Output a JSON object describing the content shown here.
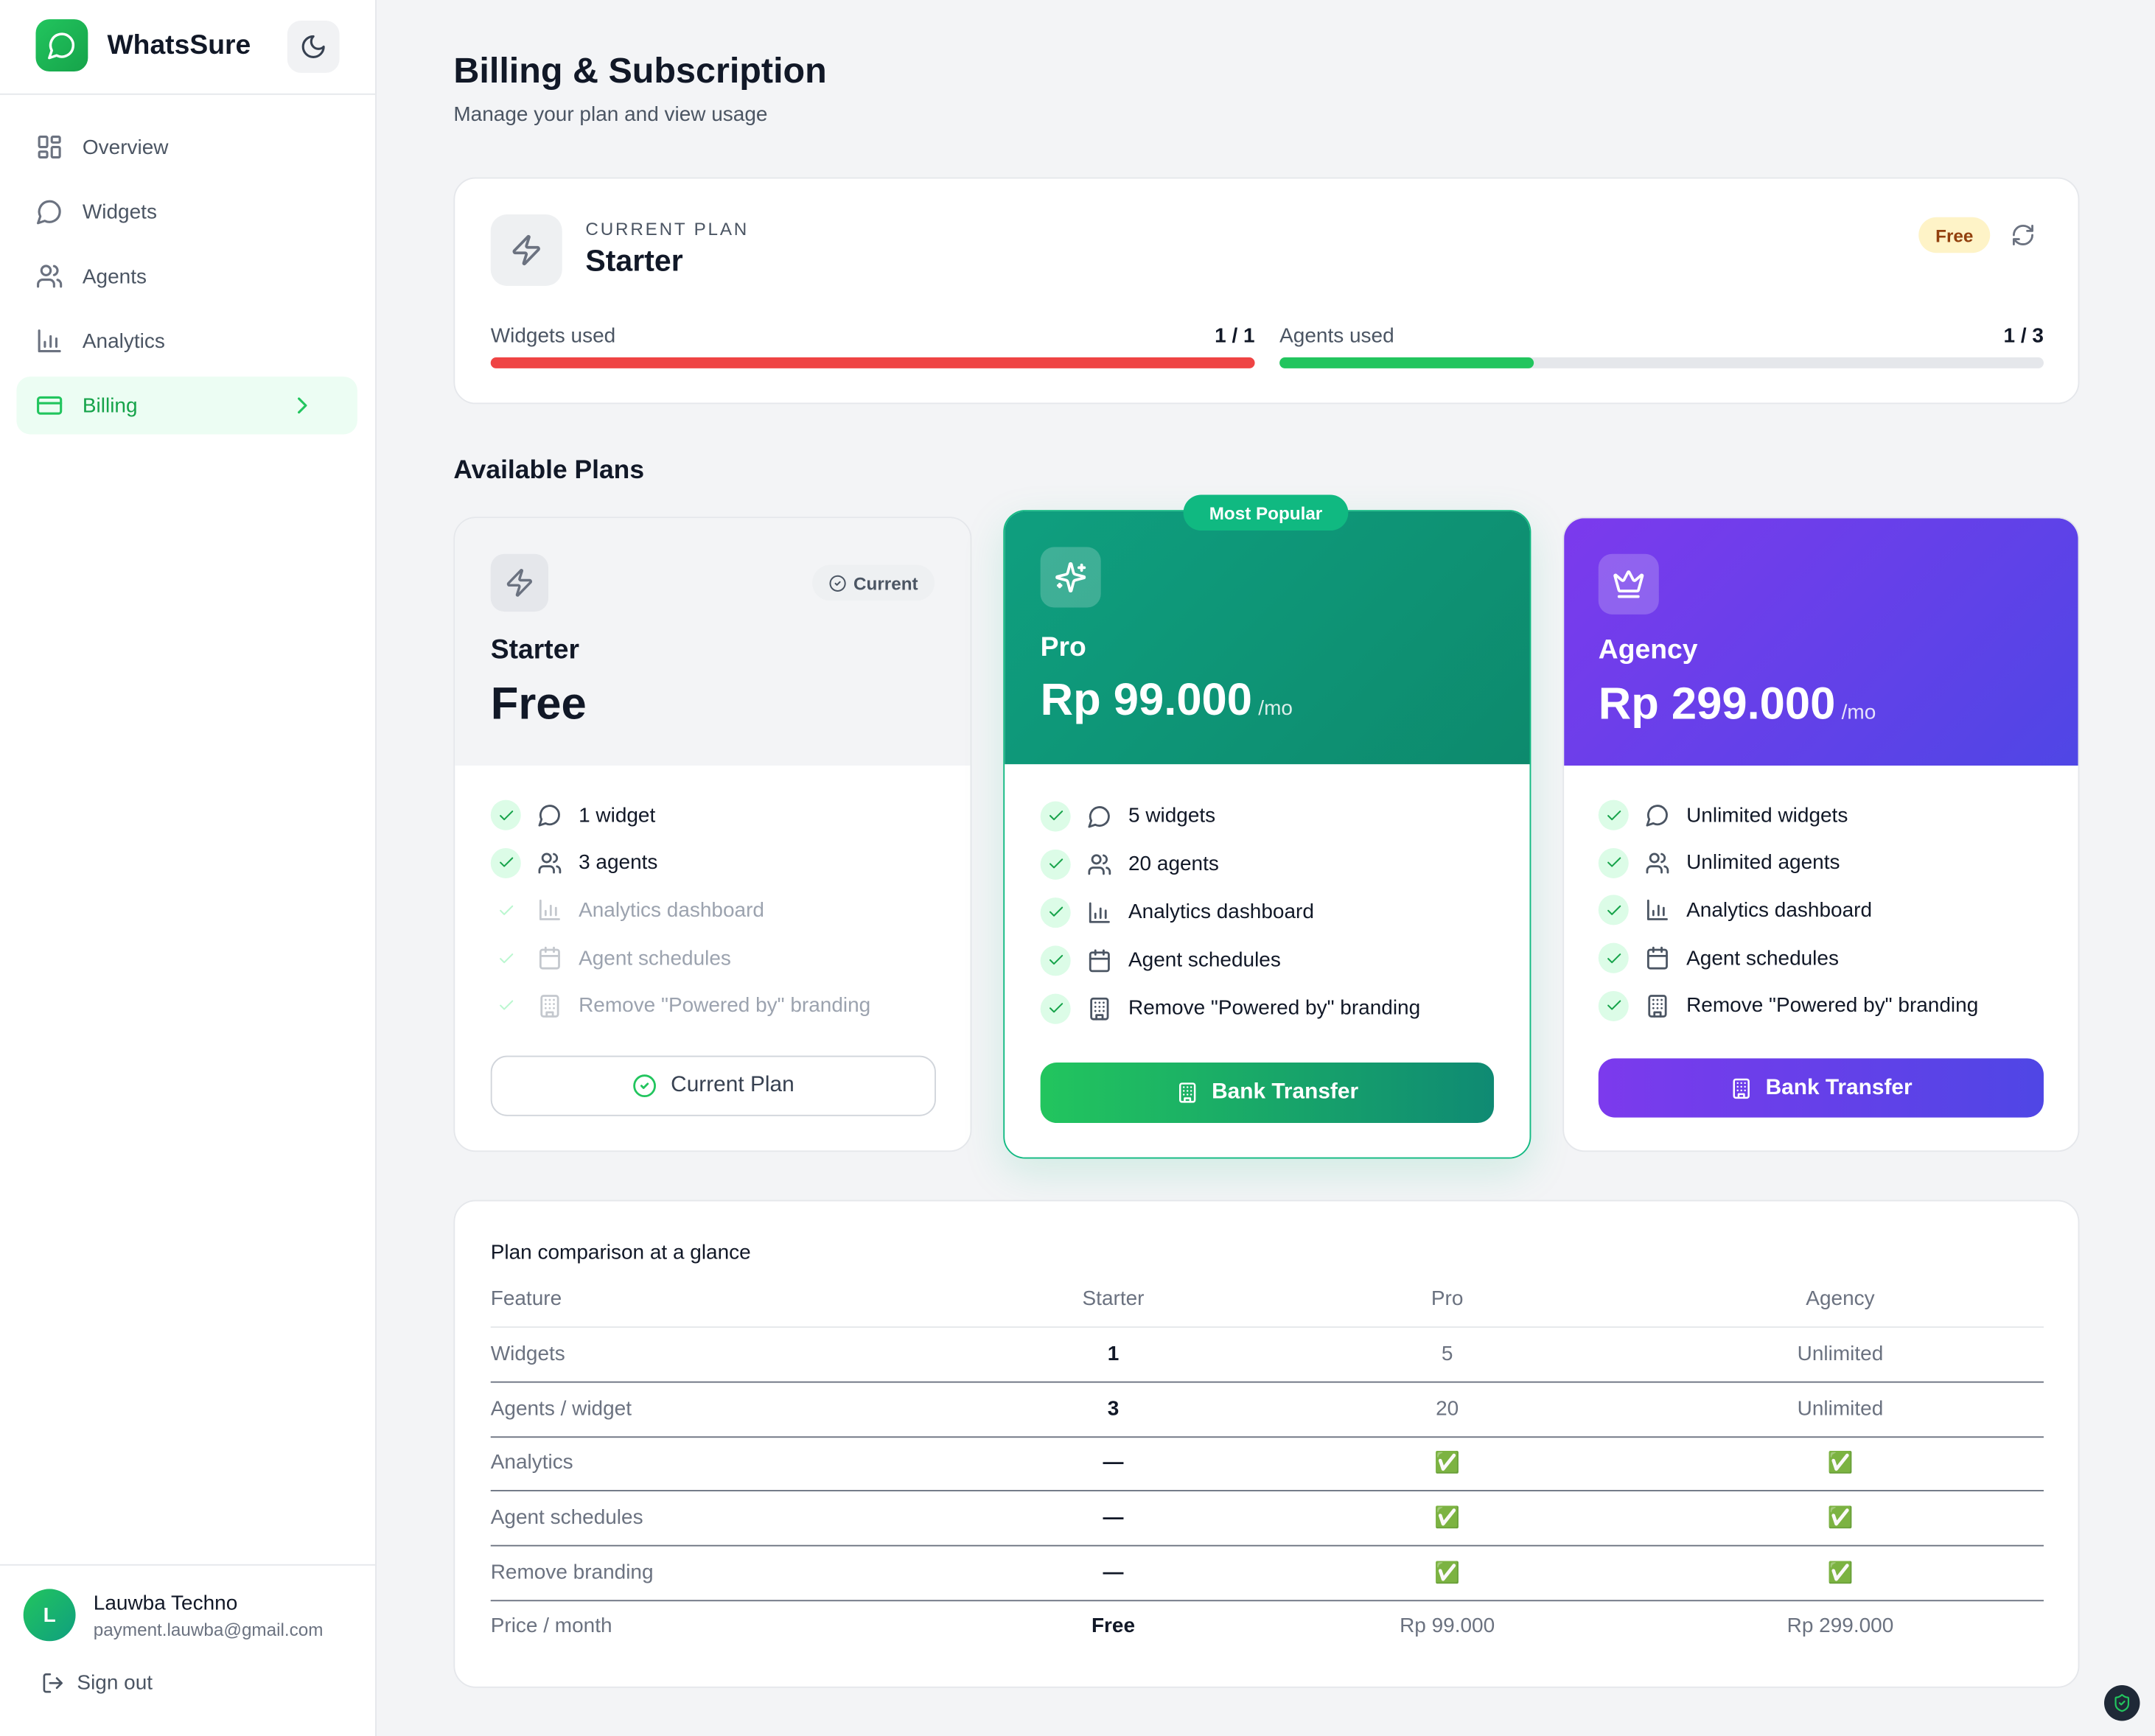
{
  "sidebar": {
    "brand": "WhatsSure",
    "nav": [
      "Overview",
      "Widgets",
      "Agents",
      "Analytics",
      "Billing"
    ],
    "user": {
      "initial": "L",
      "name": "Lauwba Techno",
      "email": "payment.lauwba@gmail.com"
    },
    "sign_out": "Sign out"
  },
  "header": {
    "title": "Billing & Subscription",
    "subtitle": "Manage your plan and view usage"
  },
  "current_plan": {
    "label": "CURRENT PLAN",
    "name": "Starter",
    "badge": "Free",
    "usage": [
      {
        "label": "Widgets used",
        "value": "1 / 1"
      },
      {
        "label": "Agents used",
        "value": "1 / 3"
      }
    ]
  },
  "plans_title": "Available Plans",
  "plans": [
    {
      "name": "Starter",
      "price": "Free",
      "status": "Current",
      "button": "Current Plan",
      "features": [
        {
          "text": "1 widget",
          "included": true
        },
        {
          "text": "3 agents",
          "included": true
        },
        {
          "text": "Analytics dashboard",
          "included": false
        },
        {
          "text": "Agent schedules",
          "included": false
        },
        {
          "text": "Remove \"Powered by\" branding",
          "included": false
        }
      ]
    },
    {
      "ribbon": "Most Popular",
      "name": "Pro",
      "price": "Rp 99.000",
      "period": "/mo",
      "button": "Bank Transfer",
      "features": [
        {
          "text": "5 widgets",
          "included": true
        },
        {
          "text": "20 agents",
          "included": true
        },
        {
          "text": "Analytics dashboard",
          "included": true
        },
        {
          "text": "Agent schedules",
          "included": true
        },
        {
          "text": "Remove \"Powered by\" branding",
          "included": true
        }
      ]
    },
    {
      "name": "Agency",
      "price": "Rp 299.000",
      "period": "/mo",
      "button": "Bank Transfer",
      "features": [
        {
          "text": "Unlimited widgets",
          "included": true
        },
        {
          "text": "Unlimited agents",
          "included": true
        },
        {
          "text": "Analytics dashboard",
          "included": true
        },
        {
          "text": "Agent schedules",
          "included": true
        },
        {
          "text": "Remove \"Powered by\" branding",
          "included": true
        }
      ]
    }
  ],
  "comparison": {
    "title": "Plan comparison at a glance",
    "header": [
      "Feature",
      "Starter",
      "Pro",
      "Agency"
    ],
    "rows": [
      [
        "Widgets",
        "1",
        "5",
        "Unlimited"
      ],
      [
        "Agents / widget",
        "3",
        "20",
        "Unlimited"
      ],
      [
        "Analytics",
        "—",
        "✅",
        "✅"
      ],
      [
        "Agent schedules",
        "—",
        "✅",
        "✅"
      ],
      [
        "Remove branding",
        "—",
        "✅",
        "✅"
      ],
      [
        "Price / month",
        "Free",
        "Rp 99.000",
        "Rp 299.000"
      ]
    ]
  }
}
